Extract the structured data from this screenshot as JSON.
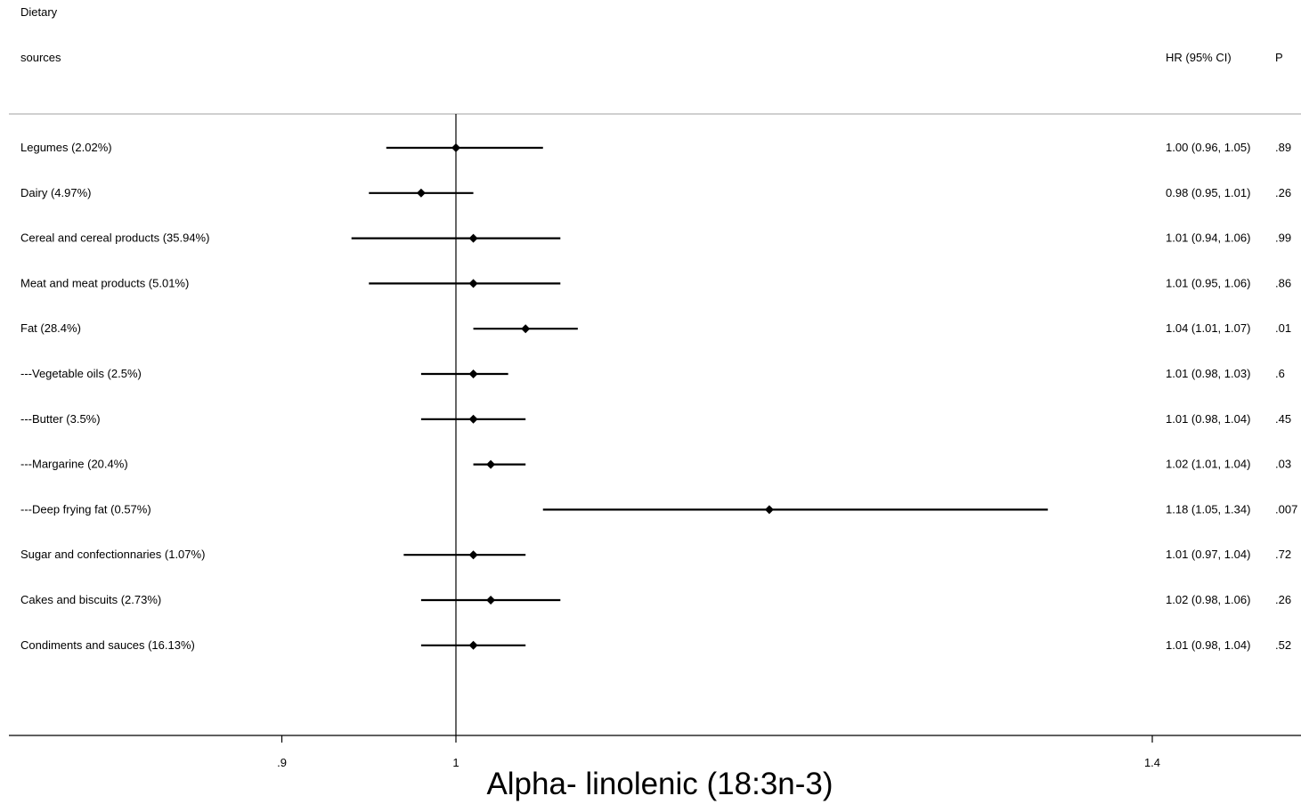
{
  "header": {
    "col1_line1": "Dietary",
    "col1_line2": "sources",
    "col_hr": "HR (95% CI)",
    "col_p": "P"
  },
  "chart_data": {
    "type": "forest",
    "xlabel": "Alpha- linolenic (18:3n-3)",
    "reference_line": 1,
    "xticks": [
      0.9,
      1,
      1.4
    ],
    "xtick_labels": [
      ".9",
      "1",
      "1.4"
    ],
    "xlim": [
      0.8,
      1.475
    ],
    "rows": [
      {
        "label": "Legumes (2.02%)",
        "hr": 1.0,
        "lo": 0.96,
        "hi": 1.05,
        "hr_text": "1.00 (0.96, 1.05)",
        "p": ".89"
      },
      {
        "label": "Dairy (4.97%)",
        "hr": 0.98,
        "lo": 0.95,
        "hi": 1.01,
        "hr_text": "0.98 (0.95, 1.01)",
        "p": ".26"
      },
      {
        "label": "Cereal and cereal products (35.94%)",
        "hr": 1.01,
        "lo": 0.94,
        "hi": 1.06,
        "hr_text": "1.01 (0.94, 1.06)",
        "p": ".99"
      },
      {
        "label": "Meat and meat products (5.01%)",
        "hr": 1.01,
        "lo": 0.95,
        "hi": 1.06,
        "hr_text": "1.01 (0.95, 1.06)",
        "p": ".86"
      },
      {
        "label": "Fat (28.4%)",
        "hr": 1.04,
        "lo": 1.01,
        "hi": 1.07,
        "hr_text": "1.04 (1.01, 1.07)",
        "p": ".01"
      },
      {
        "label": "---Vegetable oils (2.5%)",
        "hr": 1.01,
        "lo": 0.98,
        "hi": 1.03,
        "hr_text": "1.01 (0.98, 1.03)",
        "p": ".6"
      },
      {
        "label": "---Butter (3.5%)",
        "hr": 1.01,
        "lo": 0.98,
        "hi": 1.04,
        "hr_text": "1.01 (0.98, 1.04)",
        "p": ".45"
      },
      {
        "label": "---Margarine (20.4%)",
        "hr": 1.02,
        "lo": 1.01,
        "hi": 1.04,
        "hr_text": "1.02 (1.01, 1.04)",
        "p": ".03"
      },
      {
        "label": "---Deep frying fat (0.57%)",
        "hr": 1.18,
        "lo": 1.05,
        "hi": 1.34,
        "hr_text": "1.18 (1.05, 1.34)",
        "p": ".007"
      },
      {
        "label": "Sugar and confectionnaries (1.07%)",
        "hr": 1.01,
        "lo": 0.97,
        "hi": 1.04,
        "hr_text": "1.01 (0.97, 1.04)",
        "p": ".72"
      },
      {
        "label": "Cakes and biscuits (2.73%)",
        "hr": 1.02,
        "lo": 0.98,
        "hi": 1.06,
        "hr_text": "1.02 (0.98, 1.06)",
        "p": ".26"
      },
      {
        "label": "Condiments and sauces (16.13%)",
        "hr": 1.01,
        "lo": 0.98,
        "hi": 1.04,
        "hr_text": "1.01 (0.98, 1.04)",
        "p": ".52"
      }
    ]
  }
}
